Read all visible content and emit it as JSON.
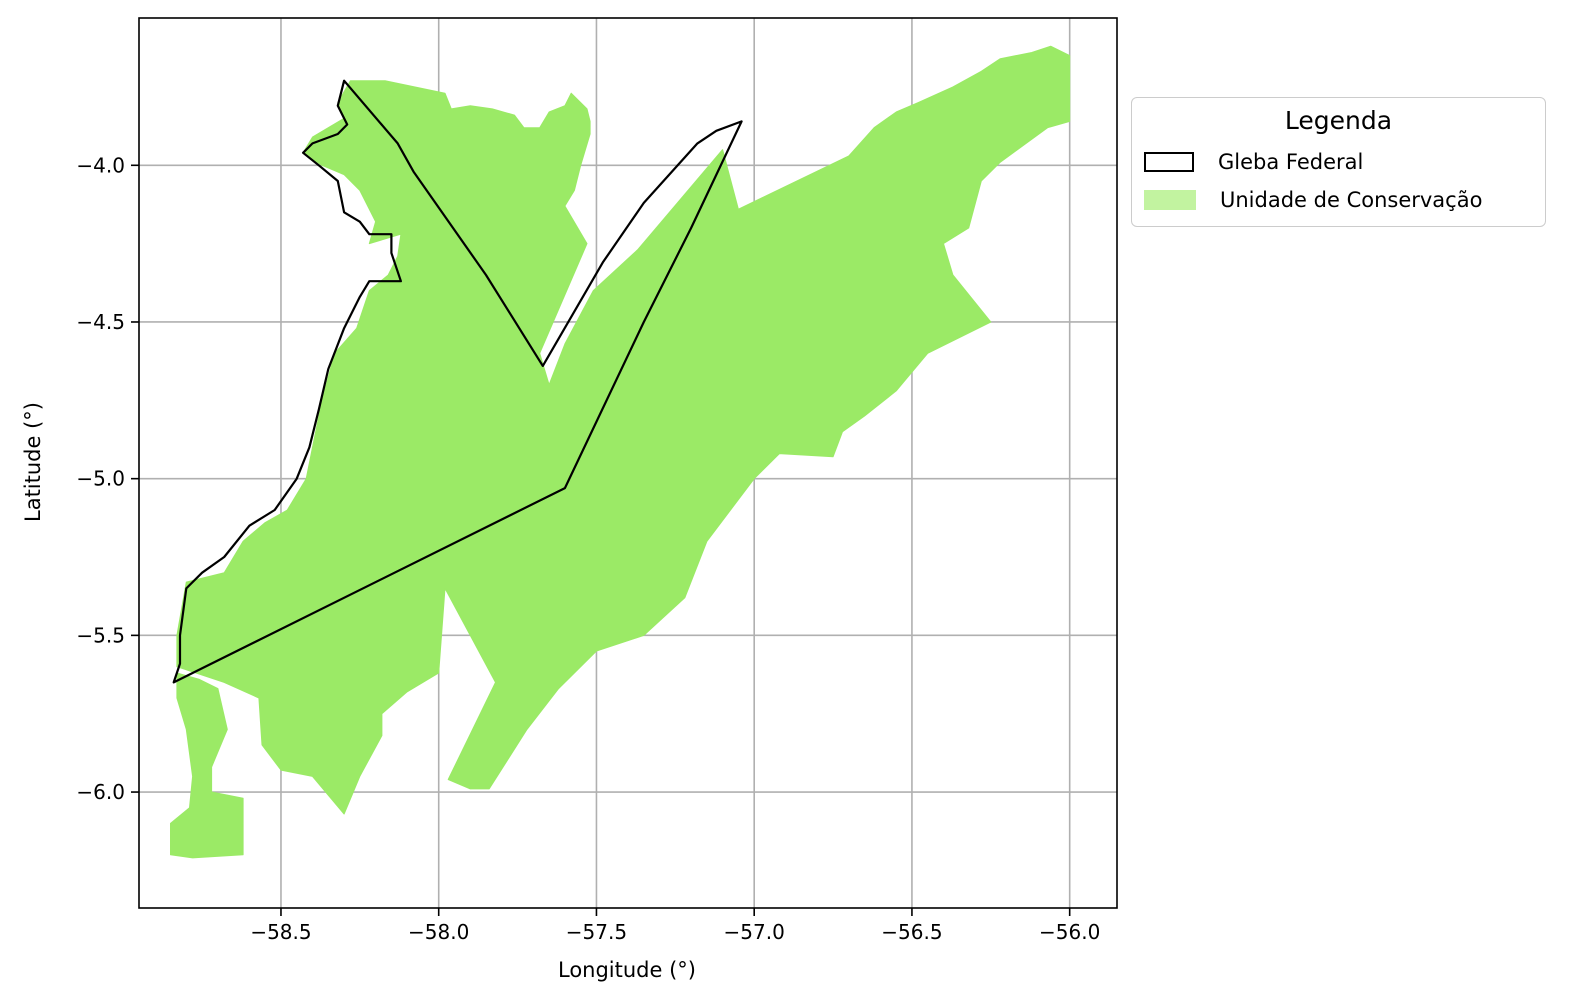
{
  "colors": {
    "uc_fill": "#9bea66",
    "uc_legend_fill": "#c2f3a0",
    "gleba_edge": "#000000",
    "grid": "#b0b0b0"
  },
  "map": {
    "x_label": "Longitude (°)",
    "y_label": "Latitude (°)",
    "xlim": [
      -58.95,
      -55.85
    ],
    "ylim": [
      -6.37,
      -3.53
    ],
    "x_ticks": [
      -58.5,
      -58.0,
      -57.5,
      -57.0,
      -56.5,
      -56.0
    ],
    "y_ticks": [
      -4.0,
      -4.5,
      -5.0,
      -5.5,
      -6.0
    ],
    "x_tick_labels": [
      "−58.5",
      "−58.0",
      "−57.5",
      "−57.0",
      "−56.5",
      "−56.0"
    ],
    "y_tick_labels": [
      "−4.0",
      "−4.5",
      "−5.0",
      "−5.5",
      "−6.0"
    ],
    "grid": true
  },
  "legend": {
    "title": "Legenda",
    "items": [
      {
        "label": "Gleba Federal",
        "style": "outline"
      },
      {
        "label": "Unidade de Conservação",
        "style": "fill"
      }
    ],
    "placement": "right, outside plot"
  },
  "chart_data": {
    "type": "map",
    "xlabel": "Longitude (°)",
    "ylabel": "Latitude (°)",
    "xlim": [
      -58.95,
      -55.85
    ],
    "ylim": [
      -6.37,
      -3.53
    ],
    "grid": true,
    "layers": [
      {
        "name": "Unidade de Conservação",
        "kind": "polygon-fill",
        "polygons": [
          [
            [
              -58.28,
              -3.73
            ],
            [
              -58.17,
              -3.73
            ],
            [
              -57.98,
              -3.77
            ],
            [
              -57.96,
              -3.82
            ],
            [
              -57.9,
              -3.81
            ],
            [
              -57.83,
              -3.82
            ],
            [
              -57.76,
              -3.84
            ],
            [
              -57.73,
              -3.88
            ],
            [
              -57.68,
              -3.88
            ],
            [
              -57.65,
              -3.83
            ],
            [
              -57.6,
              -3.81
            ],
            [
              -57.58,
              -3.77
            ],
            [
              -57.53,
              -3.82
            ],
            [
              -57.52,
              -3.86
            ],
            [
              -57.52,
              -3.9
            ],
            [
              -57.55,
              -4.0
            ],
            [
              -57.57,
              -4.08
            ],
            [
              -57.6,
              -4.13
            ],
            [
              -57.53,
              -4.25
            ],
            [
              -57.68,
              -4.6
            ],
            [
              -57.65,
              -4.7
            ],
            [
              -57.6,
              -4.57
            ],
            [
              -57.51,
              -4.4
            ],
            [
              -57.37,
              -4.27
            ],
            [
              -57.1,
              -3.95
            ],
            [
              -57.05,
              -4.14
            ],
            [
              -56.7,
              -3.97
            ],
            [
              -56.62,
              -3.88
            ],
            [
              -56.55,
              -3.83
            ],
            [
              -56.48,
              -3.8
            ],
            [
              -56.37,
              -3.75
            ],
            [
              -56.28,
              -3.7
            ],
            [
              -56.22,
              -3.66
            ],
            [
              -56.12,
              -3.64
            ],
            [
              -56.06,
              -3.62
            ],
            [
              -56.0,
              -3.65
            ],
            [
              -56.0,
              -3.86
            ],
            [
              -56.07,
              -3.88
            ],
            [
              -56.22,
              -3.99
            ],
            [
              -56.28,
              -4.05
            ],
            [
              -56.32,
              -4.2
            ],
            [
              -56.4,
              -4.25
            ],
            [
              -56.37,
              -4.35
            ],
            [
              -56.25,
              -4.5
            ],
            [
              -56.45,
              -4.6
            ],
            [
              -56.55,
              -4.72
            ],
            [
              -56.65,
              -4.8
            ],
            [
              -56.72,
              -4.85
            ],
            [
              -56.75,
              -4.93
            ],
            [
              -56.92,
              -4.92
            ],
            [
              -57.0,
              -5.0
            ],
            [
              -57.15,
              -5.2
            ],
            [
              -57.22,
              -5.38
            ],
            [
              -57.35,
              -5.5
            ],
            [
              -57.5,
              -5.55
            ],
            [
              -57.62,
              -5.67
            ],
            [
              -57.72,
              -5.8
            ],
            [
              -57.84,
              -5.99
            ],
            [
              -57.9,
              -5.99
            ],
            [
              -57.97,
              -5.96
            ],
            [
              -57.82,
              -5.65
            ],
            [
              -57.98,
              -5.35
            ],
            [
              -58.0,
              -5.62
            ],
            [
              -58.1,
              -5.68
            ],
            [
              -58.18,
              -5.75
            ],
            [
              -58.18,
              -5.82
            ],
            [
              -58.25,
              -5.95
            ],
            [
              -58.3,
              -6.07
            ],
            [
              -58.4,
              -5.95
            ],
            [
              -58.5,
              -5.93
            ],
            [
              -58.56,
              -5.85
            ],
            [
              -58.57,
              -5.7
            ],
            [
              -58.68,
              -5.65
            ],
            [
              -58.83,
              -5.6
            ],
            [
              -58.83,
              -5.5
            ],
            [
              -58.8,
              -5.33
            ],
            [
              -58.68,
              -5.3
            ],
            [
              -58.62,
              -5.2
            ],
            [
              -58.55,
              -5.14
            ],
            [
              -58.48,
              -5.1
            ],
            [
              -58.42,
              -5.0
            ],
            [
              -58.4,
              -4.9
            ],
            [
              -58.37,
              -4.75
            ],
            [
              -58.33,
              -4.6
            ],
            [
              -58.26,
              -4.52
            ],
            [
              -58.22,
              -4.4
            ],
            [
              -58.16,
              -4.35
            ],
            [
              -58.13,
              -4.29
            ],
            [
              -58.12,
              -4.22
            ],
            [
              -58.22,
              -4.25
            ],
            [
              -58.2,
              -4.18
            ],
            [
              -58.25,
              -4.08
            ],
            [
              -58.3,
              -4.03
            ],
            [
              -58.37,
              -4.0
            ],
            [
              -58.43,
              -3.96
            ],
            [
              -58.4,
              -3.91
            ],
            [
              -58.35,
              -3.88
            ],
            [
              -58.3,
              -3.85
            ],
            [
              -58.32,
              -3.8
            ],
            [
              -58.28,
              -3.73
            ]
          ],
          [
            [
              -58.83,
              -5.62
            ],
            [
              -58.76,
              -5.64
            ],
            [
              -58.7,
              -5.67
            ],
            [
              -58.67,
              -5.8
            ],
            [
              -58.72,
              -5.92
            ],
            [
              -58.72,
              -6.0
            ],
            [
              -58.62,
              -6.02
            ],
            [
              -58.62,
              -6.2
            ],
            [
              -58.78,
              -6.21
            ],
            [
              -58.85,
              -6.2
            ],
            [
              -58.85,
              -6.1
            ],
            [
              -58.79,
              -6.05
            ],
            [
              -58.78,
              -5.95
            ],
            [
              -58.8,
              -5.8
            ],
            [
              -58.83,
              -5.7
            ],
            [
              -58.83,
              -5.62
            ]
          ]
        ]
      },
      {
        "name": "Gleba Federal",
        "kind": "polygon-outline",
        "polygons": [
          [
            [
              -58.3,
              -3.73
            ],
            [
              -58.13,
              -3.93
            ],
            [
              -58.08,
              -4.02
            ],
            [
              -57.85,
              -4.35
            ],
            [
              -57.67,
              -4.64
            ],
            [
              -57.48,
              -4.31
            ],
            [
              -57.35,
              -4.12
            ],
            [
              -57.18,
              -3.93
            ],
            [
              -57.12,
              -3.89
            ],
            [
              -57.04,
              -3.86
            ],
            [
              -57.2,
              -4.2
            ],
            [
              -57.35,
              -4.5
            ],
            [
              -57.6,
              -5.03
            ],
            [
              -58.84,
              -5.65
            ],
            [
              -58.82,
              -5.59
            ],
            [
              -58.82,
              -5.5
            ],
            [
              -58.8,
              -5.35
            ],
            [
              -58.75,
              -5.3
            ],
            [
              -58.68,
              -5.25
            ],
            [
              -58.6,
              -5.15
            ],
            [
              -58.52,
              -5.1
            ],
            [
              -58.45,
              -5.0
            ],
            [
              -58.41,
              -4.9
            ],
            [
              -58.38,
              -4.78
            ],
            [
              -58.35,
              -4.65
            ],
            [
              -58.3,
              -4.52
            ],
            [
              -58.25,
              -4.42
            ],
            [
              -58.22,
              -4.37
            ],
            [
              -58.12,
              -4.37
            ],
            [
              -58.15,
              -4.28
            ],
            [
              -58.15,
              -4.22
            ],
            [
              -58.22,
              -4.22
            ],
            [
              -58.25,
              -4.18
            ],
            [
              -58.3,
              -4.15
            ],
            [
              -58.32,
              -4.05
            ],
            [
              -58.38,
              -4.0
            ],
            [
              -58.43,
              -3.96
            ],
            [
              -58.4,
              -3.93
            ],
            [
              -58.32,
              -3.9
            ],
            [
              -58.29,
              -3.87
            ],
            [
              -58.32,
              -3.81
            ],
            [
              -58.3,
              -3.73
            ]
          ]
        ]
      }
    ],
    "legend": [
      "Gleba Federal",
      "Unidade de Conservação"
    ],
    "legend_title": "Legenda",
    "legend_placement": "right"
  }
}
